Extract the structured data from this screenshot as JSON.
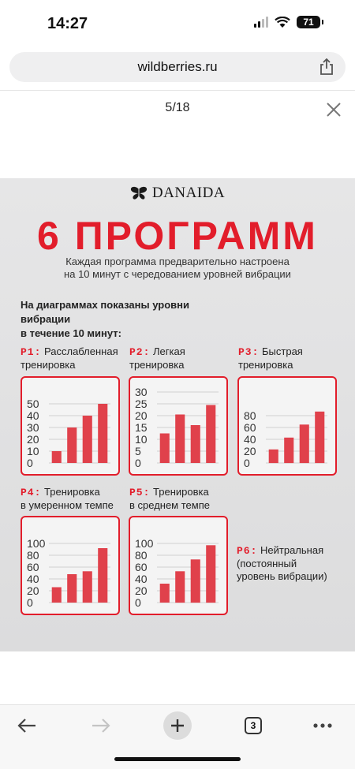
{
  "status": {
    "time": "14:27",
    "battery": "71"
  },
  "browser": {
    "url": "wildberries.ru",
    "counter": "5/18",
    "tabs_count": "3"
  },
  "page": {
    "brand": "DANAIDA",
    "headline": "6 ПРОГРАММ",
    "subtitle_line1": "Каждая программа предварительно настроена",
    "subtitle_line2": "на 10 минут с чередованием уровней вибрации",
    "intro_line1": "На диаграммах показаны уровни вибрации",
    "intro_line2": "в течение 10 минут:"
  },
  "programs": [
    {
      "code": "P1:",
      "line1": " Расслабленная",
      "line2": "тренировка"
    },
    {
      "code": "P2:",
      "line1": " Легкая",
      "line2": "тренировка"
    },
    {
      "code": "P3:",
      "line1": " Быстрая",
      "line2": "тренировка"
    },
    {
      "code": "P4:",
      "line1": " Тренировка",
      "line2": "в умеренном темпе"
    },
    {
      "code": "P5:",
      "line1": " Тренировка",
      "line2": "в среднем темпе"
    },
    {
      "code": "P6:",
      "line1": " Нейтральная",
      "line2": "(постоянный",
      "line3": "уровень вибрации)"
    }
  ],
  "colors": {
    "accent": "#e21d2b",
    "bar": "#e0414b"
  },
  "chart_data": [
    {
      "type": "bar",
      "title": "",
      "yticks": [
        0,
        10,
        20,
        30,
        40,
        50
      ],
      "ylim": [
        0,
        55
      ],
      "values": [
        10,
        30,
        40,
        50
      ],
      "grid": true
    },
    {
      "type": "bar",
      "title": "",
      "yticks": [
        0,
        5,
        10,
        15,
        20,
        25,
        30
      ],
      "ylim": [
        0,
        30
      ],
      "values": [
        12.5,
        20.5,
        16,
        24.5
      ],
      "grid": true
    },
    {
      "type": "bar",
      "title": "",
      "yticks": [
        0,
        20,
        40,
        60,
        80
      ],
      "ylim": [
        0,
        95
      ],
      "values": [
        23,
        43,
        65,
        87
      ],
      "grid": true
    },
    {
      "type": "bar",
      "title": "",
      "yticks": [
        0,
        20,
        40,
        60,
        80,
        100
      ],
      "ylim": [
        0,
        100
      ],
      "values": [
        26,
        48,
        53,
        92
      ],
      "grid": true
    },
    {
      "type": "bar",
      "title": "",
      "yticks": [
        0,
        20,
        40,
        60,
        80,
        100
      ],
      "ylim": [
        0,
        100
      ],
      "values": [
        32,
        53,
        73,
        97
      ],
      "grid": true
    }
  ]
}
